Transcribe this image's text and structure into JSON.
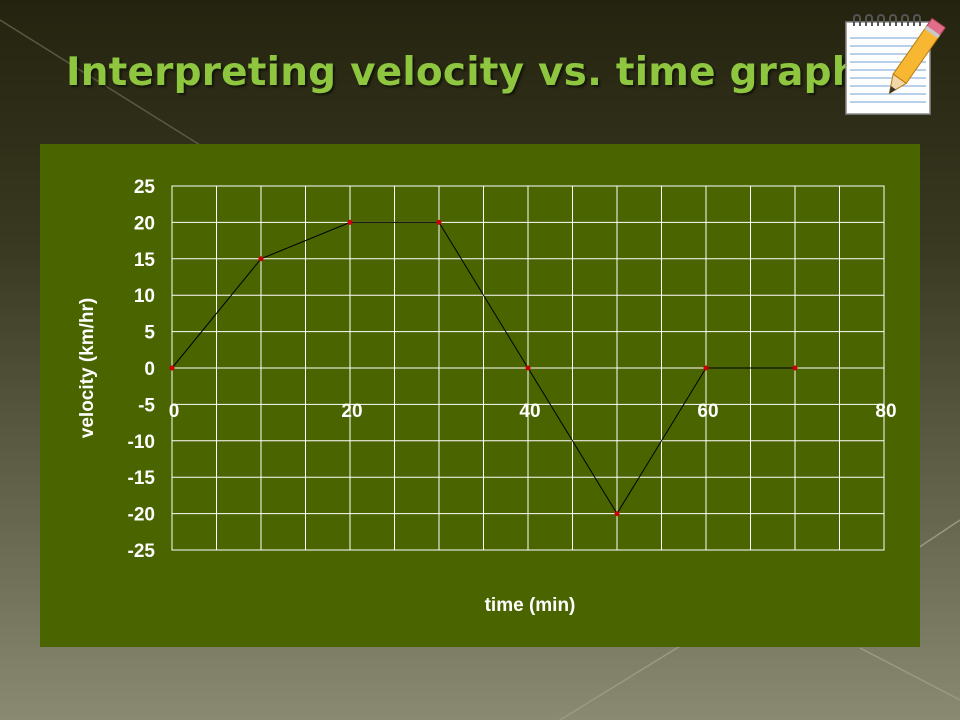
{
  "slide": {
    "title": "Interpreting velocity vs. time graphs",
    "notepad_icon": "notepad-pencil-icon",
    "colors": {
      "title": "#8ec63f",
      "panel": "#4a6400",
      "gridline": "#ffffff",
      "point": "#cc0000",
      "line": "#000000"
    }
  },
  "chart_data": {
    "type": "line",
    "title": "",
    "xlabel": "time (min)",
    "ylabel": "velocity (km/hr)",
    "xlim": [
      0,
      80
    ],
    "ylim": [
      -25,
      25
    ],
    "x_ticks": [
      0,
      20,
      40,
      60,
      80
    ],
    "y_ticks": [
      25,
      20,
      15,
      10,
      5,
      0,
      -5,
      -10,
      -15,
      -20,
      -25
    ],
    "grid": true,
    "legend": "none",
    "series": [
      {
        "x": [
          0,
          10,
          20,
          30,
          40,
          50,
          60,
          70
        ],
        "y": [
          0,
          15,
          20,
          20,
          0,
          -20,
          0,
          0
        ]
      }
    ]
  }
}
